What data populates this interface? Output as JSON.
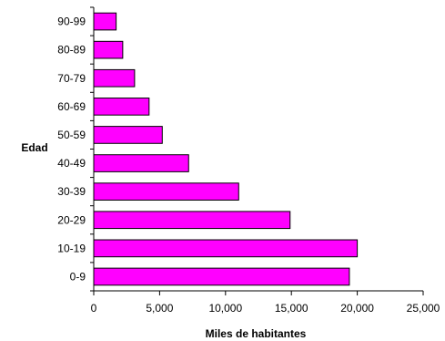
{
  "chart_data": {
    "type": "bar",
    "orientation": "horizontal",
    "categories": [
      "0-9",
      "10-19",
      "20-29",
      "30-39",
      "40-49",
      "50-59",
      "60-69",
      "70-79",
      "80-89",
      "90-99"
    ],
    "values": [
      19400,
      20000,
      14900,
      11000,
      7200,
      5200,
      4200,
      3100,
      2200,
      1700
    ],
    "xlabel": "Miles de habitantes",
    "ylabel": "Edad",
    "xlim": [
      0,
      25000
    ],
    "xticks": [
      "0",
      "5,000",
      "10,000",
      "15,000",
      "20,000",
      "25,000"
    ],
    "xtick_values": [
      0,
      5000,
      10000,
      15000,
      20000,
      25000
    ],
    "grid": false,
    "legend": "none",
    "bar_color": "#ff00ff",
    "bar_edge_color": "#000000"
  }
}
